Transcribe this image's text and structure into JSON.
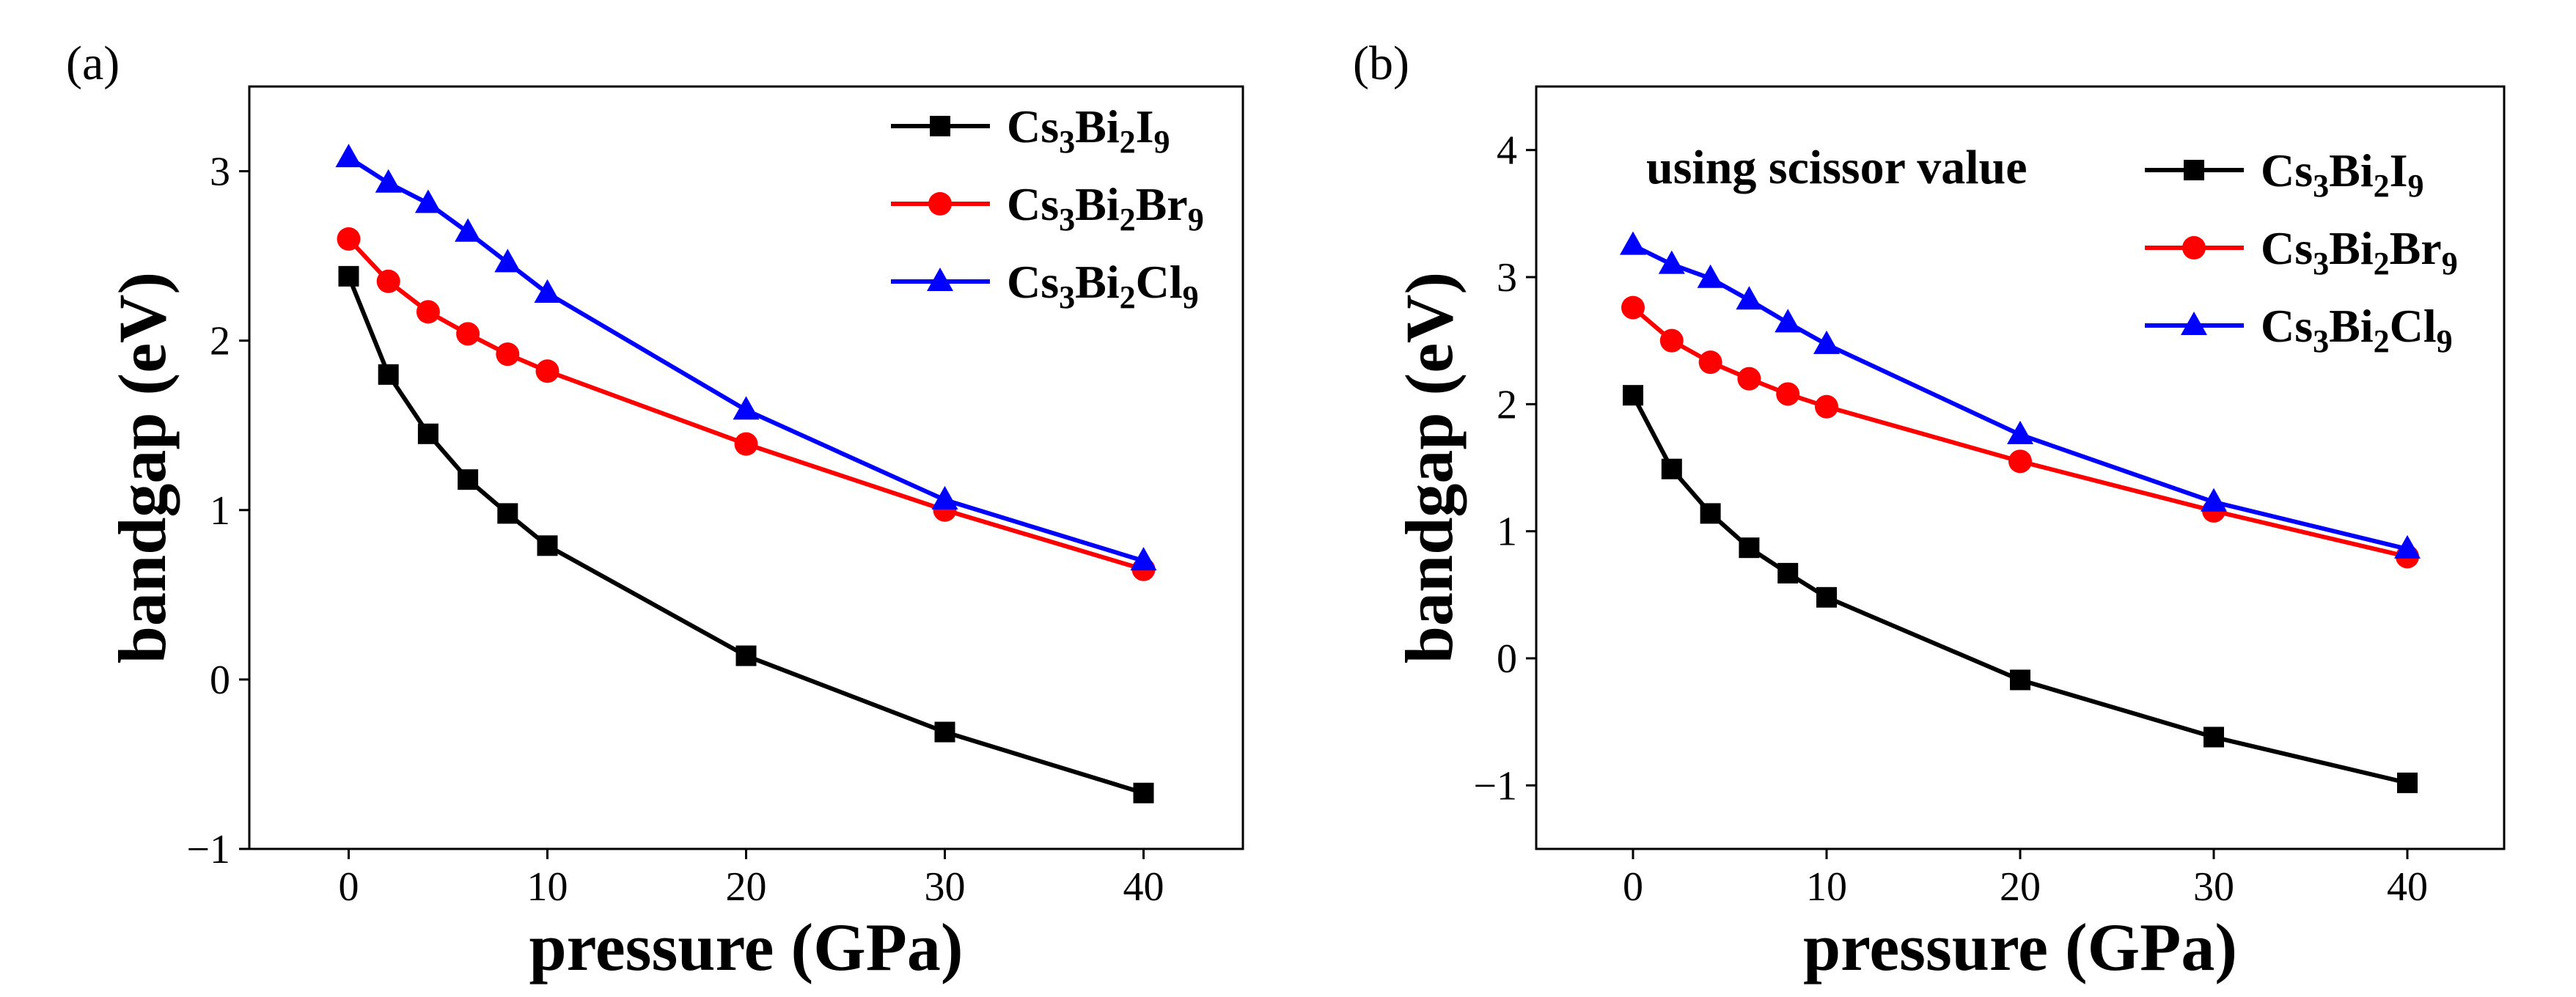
{
  "chart_data": [
    {
      "type": "line",
      "panel_label": "(a)",
      "annotation": "",
      "xlabel": "pressure (GPa)",
      "ylabel": "bandgap (eV)",
      "xlim": [
        -5,
        45
      ],
      "ylim": [
        -1,
        3.5
      ],
      "xticks": [
        0,
        10,
        20,
        30,
        40
      ],
      "yticks": [
        -1,
        0,
        1,
        2,
        3
      ],
      "ytick_labels": [
        "−1",
        "0",
        "1",
        "2",
        "3"
      ],
      "legend_position": "top-right",
      "x": [
        0,
        2,
        4,
        6,
        8,
        10,
        20,
        30,
        40
      ],
      "series": [
        {
          "name": "Cs3Bi2I9",
          "color": "#000000",
          "marker": "square",
          "values": [
            2.38,
            1.8,
            1.45,
            1.18,
            0.98,
            0.79,
            0.14,
            -0.31,
            -0.67
          ]
        },
        {
          "name": "Cs3Bi2Br9",
          "color": "#ff0000",
          "marker": "circle",
          "values": [
            2.6,
            2.35,
            2.17,
            2.04,
            1.92,
            1.82,
            1.39,
            1.0,
            0.65
          ]
        },
        {
          "name": "Cs3Bi2Cl9",
          "color": "#0000ff",
          "marker": "triangle",
          "values": [
            3.08,
            2.93,
            2.81,
            2.64,
            2.46,
            2.28,
            1.59,
            1.06,
            0.7
          ]
        }
      ]
    },
    {
      "type": "line",
      "panel_label": "(b)",
      "annotation": "using scissor value",
      "xlabel": "pressure (GPa)",
      "ylabel": "bandgap (eV)",
      "xlim": [
        -5,
        45
      ],
      "ylim": [
        -1.5,
        4.5
      ],
      "xticks": [
        0,
        10,
        20,
        30,
        40
      ],
      "yticks": [
        -1,
        0,
        1,
        2,
        3,
        4
      ],
      "ytick_labels": [
        "−1",
        "0",
        "1",
        "2",
        "3",
        "4"
      ],
      "legend_position": "top-right",
      "x": [
        0,
        2,
        4,
        6,
        8,
        10,
        20,
        30,
        40
      ],
      "series": [
        {
          "name": "Cs3Bi2I9",
          "color": "#000000",
          "marker": "square",
          "values": [
            2.07,
            1.49,
            1.14,
            0.87,
            0.67,
            0.48,
            -0.17,
            -0.62,
            -0.98
          ]
        },
        {
          "name": "Cs3Bi2Br9",
          "color": "#ff0000",
          "marker": "circle",
          "values": [
            2.76,
            2.5,
            2.33,
            2.2,
            2.08,
            1.98,
            1.55,
            1.16,
            0.8
          ]
        },
        {
          "name": "Cs3Bi2Cl9",
          "color": "#0000ff",
          "marker": "triangle",
          "values": [
            3.25,
            3.1,
            2.99,
            2.82,
            2.64,
            2.47,
            1.76,
            1.23,
            0.86
          ]
        }
      ]
    }
  ]
}
